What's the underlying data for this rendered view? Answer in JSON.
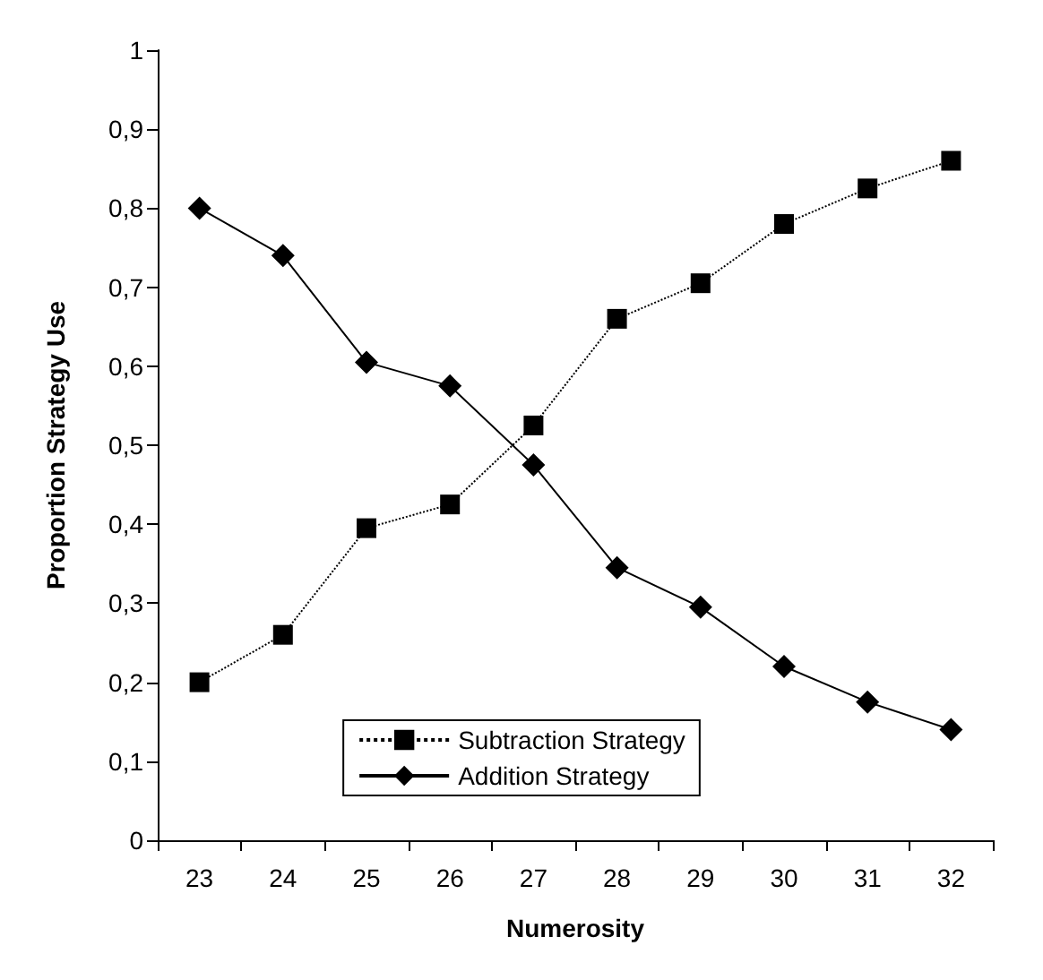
{
  "chart_data": {
    "type": "line",
    "xlabel": "Numerosity",
    "ylabel": "Proportion Strategy Use",
    "categories": [
      "23",
      "24",
      "25",
      "26",
      "27",
      "28",
      "29",
      "30",
      "31",
      "32"
    ],
    "series": [
      {
        "name": "Subtraction Strategy",
        "color": "#000000",
        "marker": "square",
        "line_style": "dotted",
        "values": [
          0.2,
          0.26,
          0.395,
          0.425,
          0.525,
          0.66,
          0.705,
          0.78,
          0.825,
          0.86
        ]
      },
      {
        "name": "Addition Strategy",
        "color": "#000000",
        "marker": "diamond",
        "line_style": "solid",
        "values": [
          0.8,
          0.74,
          0.605,
          0.575,
          0.475,
          0.345,
          0.295,
          0.22,
          0.175,
          0.14
        ]
      }
    ],
    "ylim": [
      0,
      1
    ],
    "yticks": [
      0,
      {
        "value": 0.1,
        "label": "0,1"
      },
      {
        "value": 0.2,
        "label": "0,2"
      },
      {
        "value": 0.3,
        "label": "0,3"
      },
      {
        "value": 0.4,
        "label": "0,4"
      },
      {
        "value": 0.5,
        "label": "0,5"
      },
      {
        "value": 0.6,
        "label": "0,6"
      },
      {
        "value": 0.7,
        "label": "0,7"
      },
      {
        "value": 0.8,
        "label": "0,8"
      },
      {
        "value": 0.9,
        "label": "0,9"
      },
      1
    ],
    "grid": false,
    "legend": "bottom"
  }
}
